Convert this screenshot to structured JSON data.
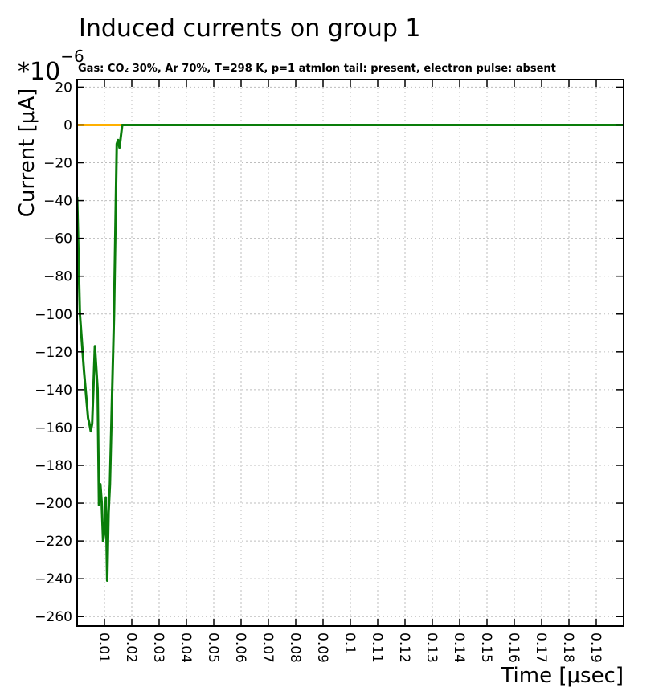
{
  "chart_data": {
    "type": "line",
    "title": "Induced currents on group 1",
    "subtitle": "Gas: CO₂ 30%, Ar 70%, T=298 K, p=1 atmIon tail: present, electron pulse: absent",
    "exponent_base": "*10",
    "exponent_power": "−6",
    "xlabel": "Time [μsec]",
    "ylabel": "Current [μA]",
    "xlim": [
      0,
      0.2
    ],
    "ylim": [
      -265,
      24
    ],
    "xticks": [
      0.01,
      0.02,
      0.03,
      0.04,
      0.05,
      0.06,
      0.07,
      0.08,
      0.09,
      0.1,
      0.11,
      0.12,
      0.13,
      0.14,
      0.15,
      0.16,
      0.17,
      0.18,
      0.19
    ],
    "xtick_labels": [
      "0.01",
      "0.02",
      "0.03",
      "0.04",
      "0.05",
      "0.06",
      "0.07",
      "0.08",
      "0.09",
      "0.1",
      "0.11",
      "0.12",
      "0.13",
      "0.14",
      "0.15",
      "0.16",
      "0.17",
      "0.18",
      "0.19"
    ],
    "yticks": [
      20,
      0,
      -20,
      -40,
      -60,
      -80,
      -100,
      -120,
      -140,
      -160,
      -180,
      -200,
      -220,
      -240,
      -260
    ],
    "ytick_labels": [
      "20",
      "0",
      "−20",
      "−40",
      "−60",
      "−80",
      "−100",
      "−120",
      "−140",
      "−160",
      "−180",
      "−200",
      "−220",
      "−240",
      "−260"
    ],
    "grid": true,
    "series": [
      {
        "color": "#ffb000",
        "x": [
          0,
          0.2
        ],
        "y": [
          0,
          0
        ]
      },
      {
        "color": "#0a7d0a",
        "x": [
          0,
          0.001,
          0.0025,
          0.004,
          0.0045,
          0.005,
          0.0055,
          0.0065,
          0.0075,
          0.008,
          0.0085,
          0.009,
          0.0095,
          0.01,
          0.0105,
          0.011,
          0.0115,
          0.012,
          0.0125,
          0.0135,
          0.0145,
          0.015,
          0.0155,
          0.0165,
          0.017,
          0.2
        ],
        "y": [
          -38,
          -100,
          -130,
          -155,
          -158,
          -162,
          -158,
          -117,
          -140,
          -201,
          -190,
          -200,
          -220,
          -215,
          -197,
          -241,
          -205,
          -190,
          -160,
          -100,
          -10,
          -8,
          -12,
          0,
          0,
          0
        ]
      }
    ]
  }
}
